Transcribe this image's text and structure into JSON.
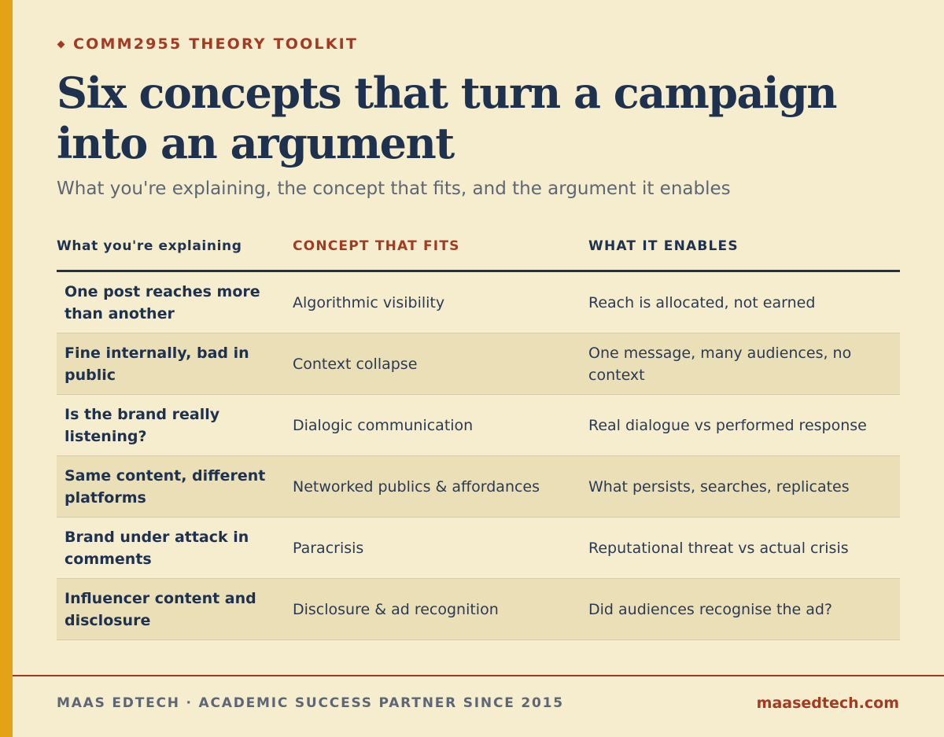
{
  "header": {
    "eyebrow": "COMM2955 THEORY TOOLKIT",
    "title": "Six concepts that turn a campaign into an argument",
    "subtitle": "What you're explaining, the concept that fits, and the argument it enables"
  },
  "table": {
    "columns": [
      "What you're explaining",
      "CONCEPT THAT FITS",
      "WHAT IT ENABLES"
    ],
    "rows": [
      {
        "situation": "One post reaches more than another",
        "concept": "Algorithmic visibility",
        "enables": "Reach is allocated, not earned"
      },
      {
        "situation": "Fine internally, bad in public",
        "concept": "Context collapse",
        "enables": "One message, many audiences, no context"
      },
      {
        "situation": "Is the brand really listening?",
        "concept": "Dialogic communication",
        "enables": "Real dialogue vs performed response"
      },
      {
        "situation": "Same content, different platforms",
        "concept": "Networked publics & affordances",
        "enables": "What persists, searches, replicates"
      },
      {
        "situation": "Brand under attack in comments",
        "concept": "Paracrisis",
        "enables": "Reputational threat vs actual crisis"
      },
      {
        "situation": "Influencer content and disclosure",
        "concept": "Disclosure & ad recognition",
        "enables": "Did audiences recognise the ad?"
      }
    ]
  },
  "footer": {
    "left": "MAAS EDTECH · ACADEMIC SUCCESS PARTNER SINCE 2015",
    "right": "maasedtech.com"
  },
  "colors": {
    "background": "#F6EDCF",
    "accent_bar": "#E4A217",
    "navy": "#1E3250",
    "rust": "#A33A22",
    "stripe": "#EBDFB7"
  }
}
